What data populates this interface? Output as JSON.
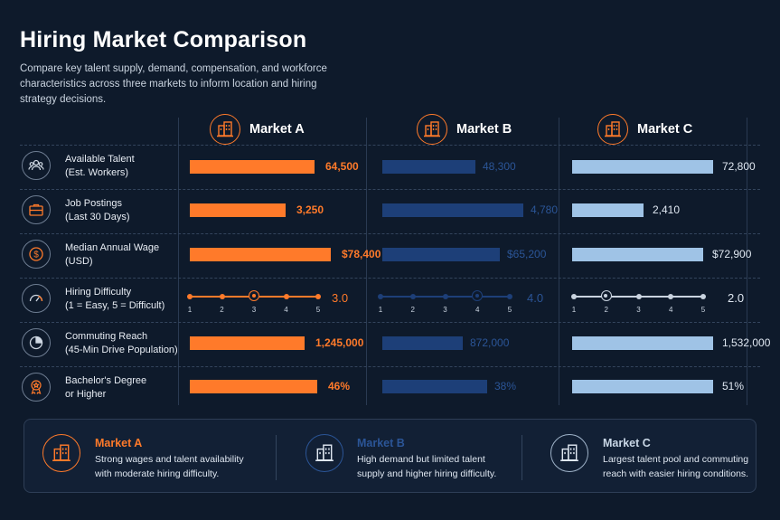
{
  "header": {
    "title": "Hiring Market Comparison",
    "subtitle": "Compare key talent supply, demand, compensation, and workforce characteristics across three markets to inform location and hiring strategy decisions."
  },
  "colors": {
    "market_a": "#ff7a2a",
    "market_b": "#1d3f78",
    "market_c": "#9fc3e6",
    "background": "#0e1a2b"
  },
  "markets": [
    {
      "name": "Market A",
      "icon": "building-icon"
    },
    {
      "name": "Market B",
      "icon": "building-icon"
    },
    {
      "name": "Market C",
      "icon": "building-icon"
    }
  ],
  "rows": [
    {
      "icon": "people-icon",
      "label1": "Available Talent",
      "label2": "(Est. Workers)"
    },
    {
      "icon": "briefcase-icon",
      "label1": "Job Postings",
      "label2": "(Last 30 Days)"
    },
    {
      "icon": "dollar-icon",
      "label1": "Median Annual Wage",
      "label2": "(USD)"
    },
    {
      "icon": "gauge-icon",
      "label1": "Hiring Difficulty",
      "label2": "(1 = Easy, 5 = Difficult)"
    },
    {
      "icon": "pie-icon",
      "label1": "Commuting Reach",
      "label2": "(45-Min Drive Population)"
    },
    {
      "icon": "award-icon",
      "label1": "Bachelor's Degree",
      "label2": "or Higher"
    }
  ],
  "chart_data": {
    "type": "bar",
    "categories": [
      "Available Talent (Est. Workers)",
      "Job Postings (Last 30 Days)",
      "Median Annual Wage (USD)",
      "Hiring Difficulty (1 = Easy, 5 = Difficult)",
      "Commuting Reach (45-Min Drive Population)",
      "Bachelor's Degree or Higher"
    ],
    "series": [
      {
        "name": "Market A",
        "values": [
          64500,
          3250,
          78400,
          3.0,
          1245000,
          46
        ],
        "labels": [
          "64,500",
          "3,250",
          "$78,400",
          "3.0",
          "1,245,000",
          "46%"
        ]
      },
      {
        "name": "Market B",
        "values": [
          48300,
          4780,
          65200,
          4.0,
          872000,
          38
        ],
        "labels": [
          "48,300",
          "4,780",
          "$65,200",
          "4.0",
          "872,000",
          "38%"
        ]
      },
      {
        "name": "Market C",
        "values": [
          72800,
          2410,
          72900,
          2.0,
          1532000,
          51
        ],
        "labels": [
          "72,800",
          "2,410",
          "$72,900",
          "2.0",
          "1,532,000",
          "51%"
        ]
      }
    ],
    "difficulty_scale": [
      "1",
      "2",
      "3",
      "4",
      "5"
    ]
  },
  "summary": [
    {
      "title": "Market A",
      "text": "Strong wages and talent availability with moderate hiring difficulty."
    },
    {
      "title": "Market B",
      "text": "High demand but limited talent supply and higher hiring difficulty."
    },
    {
      "title": "Market C",
      "text": "Largest talent pool and commuting reach with easier hiring conditions."
    }
  ]
}
